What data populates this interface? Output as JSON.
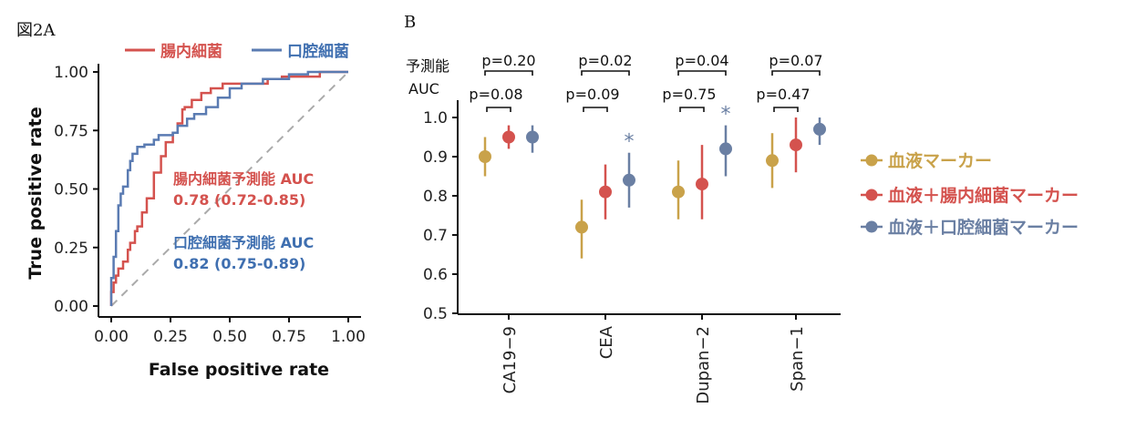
{
  "chart_data": [
    {
      "type": "line",
      "panel_label": "図2A",
      "xlabel": "False positive rate",
      "ylabel": "True positive rate",
      "xlim": [
        0,
        1
      ],
      "ylim": [
        0,
        1
      ],
      "xticks": [
        "0.00",
        "0.25",
        "0.50",
        "0.75",
        "1.00"
      ],
      "yticks": [
        "0.00",
        "0.25",
        "0.50",
        "0.75",
        "1.00"
      ],
      "legend": [
        "腸内細菌",
        "口腔細菌"
      ],
      "reference_line": "diagonal",
      "series": [
        {
          "name": "腸内細菌",
          "color": "#d4524e",
          "annotation_title": "腸内細菌予測能 AUC",
          "annotation_value": "0.78 (0.72-0.85)",
          "points": [
            [
              0,
              0
            ],
            [
              0.01,
              0.06
            ],
            [
              0.02,
              0.1
            ],
            [
              0.03,
              0.13
            ],
            [
              0.05,
              0.16
            ],
            [
              0.07,
              0.19
            ],
            [
              0.08,
              0.24
            ],
            [
              0.1,
              0.27
            ],
            [
              0.11,
              0.32
            ],
            [
              0.13,
              0.34
            ],
            [
              0.15,
              0.4
            ],
            [
              0.18,
              0.46
            ],
            [
              0.21,
              0.57
            ],
            [
              0.23,
              0.64
            ],
            [
              0.26,
              0.7
            ],
            [
              0.28,
              0.74
            ],
            [
              0.3,
              0.78
            ],
            [
              0.31,
              0.84
            ],
            [
              0.34,
              0.85
            ],
            [
              0.38,
              0.88
            ],
            [
              0.42,
              0.91
            ],
            [
              0.47,
              0.93
            ],
            [
              0.58,
              0.95
            ],
            [
              0.66,
              0.95
            ],
            [
              0.72,
              0.97
            ],
            [
              0.88,
              0.98
            ],
            [
              0.93,
              1.0
            ],
            [
              1,
              1
            ]
          ]
        },
        {
          "name": "口腔細菌",
          "color": "#5a7bb2",
          "annotation_title": "口腔細菌予測能 AUC",
          "annotation_value": "0.82 (0.75-0.89)",
          "points": [
            [
              0,
              0
            ],
            [
              0.01,
              0.12
            ],
            [
              0.02,
              0.21
            ],
            [
              0.03,
              0.32
            ],
            [
              0.04,
              0.43
            ],
            [
              0.05,
              0.48
            ],
            [
              0.07,
              0.51
            ],
            [
              0.08,
              0.58
            ],
            [
              0.09,
              0.62
            ],
            [
              0.11,
              0.65
            ],
            [
              0.14,
              0.68
            ],
            [
              0.18,
              0.69
            ],
            [
              0.2,
              0.71
            ],
            [
              0.23,
              0.73
            ],
            [
              0.26,
              0.73
            ],
            [
              0.28,
              0.74
            ],
            [
              0.32,
              0.77
            ],
            [
              0.35,
              0.8
            ],
            [
              0.4,
              0.82
            ],
            [
              0.45,
              0.85
            ],
            [
              0.5,
              0.89
            ],
            [
              0.55,
              0.93
            ],
            [
              0.64,
              0.95
            ],
            [
              0.75,
              0.97
            ],
            [
              0.83,
              0.99
            ],
            [
              0.9,
              1.0
            ],
            [
              1,
              1
            ]
          ]
        }
      ]
    },
    {
      "type": "scatter",
      "panel_label": "B",
      "ylabel_line1": "予測能",
      "ylabel_line2": "AUC",
      "ylim": [
        0.5,
        1.0
      ],
      "yticks": [
        "0.5",
        "0.6",
        "0.7",
        "0.8",
        "0.9",
        "1.0"
      ],
      "categories": [
        "CA19−9",
        "CEA",
        "Dupan−2",
        "Span−1"
      ],
      "series": [
        {
          "name": "血液マーカー",
          "color": "#c9a24a",
          "values": [
            0.9,
            0.72,
            0.81,
            0.89
          ],
          "lower": [
            0.85,
            0.64,
            0.74,
            0.82
          ],
          "upper": [
            0.95,
            0.79,
            0.89,
            0.96
          ]
        },
        {
          "name": "血液＋腸内細菌マーカー",
          "color": "#d4524e",
          "values": [
            0.95,
            0.81,
            0.83,
            0.93
          ],
          "lower": [
            0.92,
            0.74,
            0.74,
            0.86
          ],
          "upper": [
            0.98,
            0.88,
            0.93,
            1.0
          ]
        },
        {
          "name": "血液＋口腔細菌マーカー",
          "color": "#6a7fa3",
          "values": [
            0.95,
            0.84,
            0.92,
            0.97
          ],
          "lower": [
            0.91,
            0.77,
            0.85,
            0.93
          ],
          "upper": [
            0.98,
            0.91,
            0.98,
            1.0
          ]
        }
      ],
      "star_marks": [
        {
          "category": "CEA",
          "series": "血液＋口腔細菌マーカー",
          "symbol": "*"
        },
        {
          "category": "Dupan−2",
          "series": "血液＋口腔細菌マーカー",
          "symbol": "*"
        }
      ],
      "pvalues_outer": [
        "p=0.20",
        "p=0.02",
        "p=0.04",
        "p=0.07"
      ],
      "pvalues_inner": [
        "p=0.08",
        "p=0.09",
        "p=0.75",
        "p=0.47"
      ]
    }
  ]
}
